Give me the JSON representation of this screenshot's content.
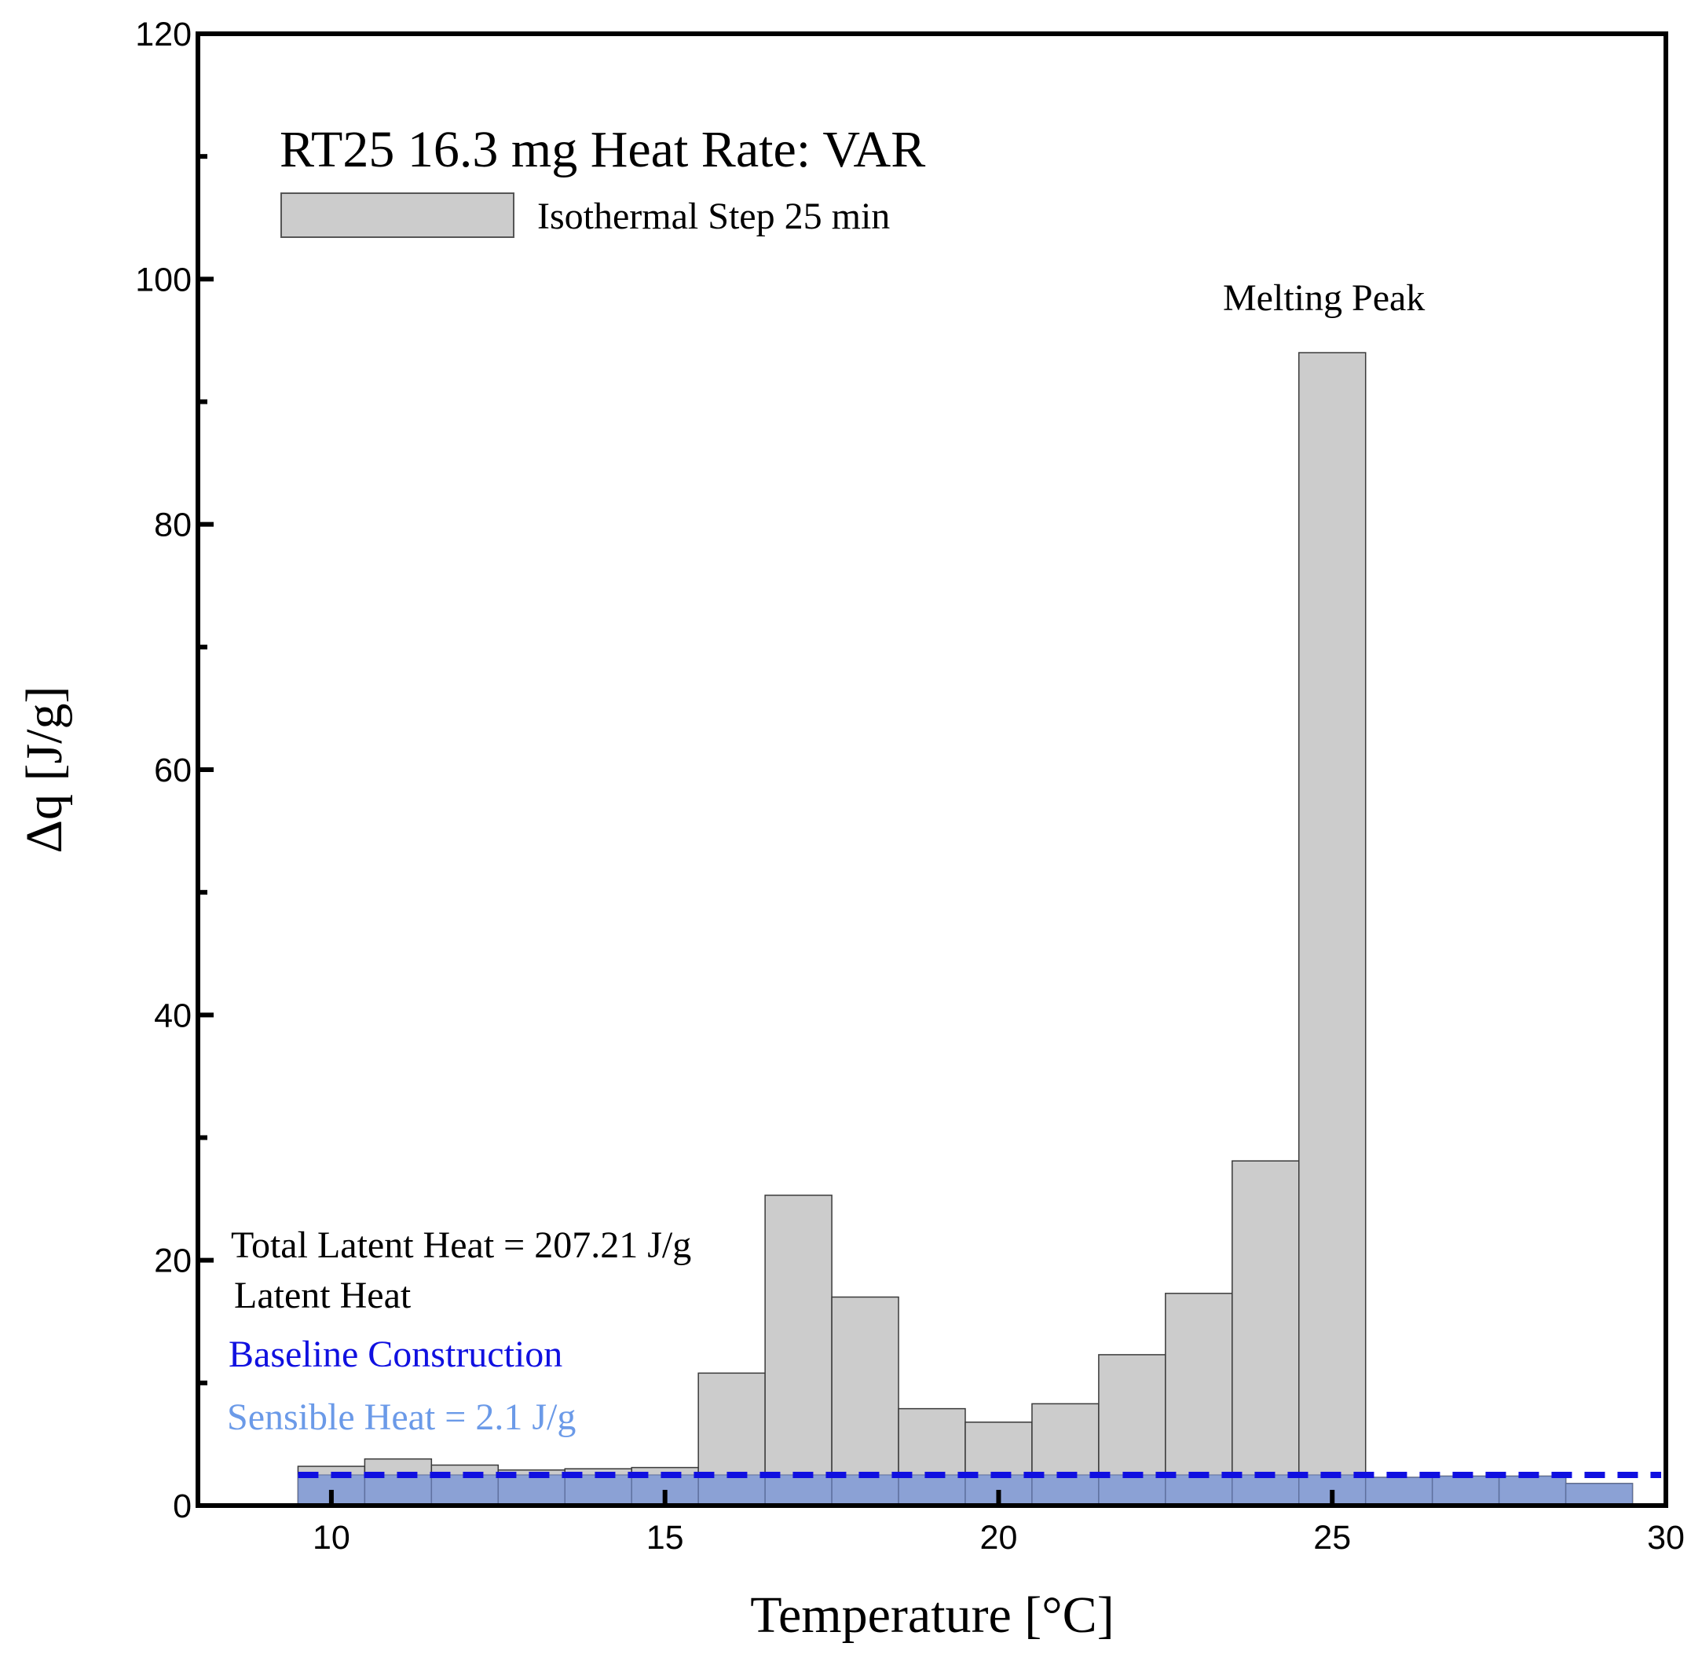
{
  "chart_data": {
    "type": "bar",
    "title": "RT25 16.3 mg Heat Rate: VAR",
    "xlabel": "Temperature [°C]",
    "ylabel": "Δq [J/g]",
    "xlim": [
      8,
      30
    ],
    "ylim": [
      0,
      120
    ],
    "xticks": [
      10,
      15,
      20,
      25,
      30
    ],
    "yticks": [
      0,
      20,
      40,
      60,
      80,
      100,
      120
    ],
    "bin_width": 1,
    "legend": {
      "label": "Isothermal Step 25 min",
      "position": "top-left"
    },
    "series": [
      {
        "name": "Isothermal Step 25 min",
        "color": "#cccccc",
        "x": [
          10,
          11,
          12,
          13,
          14,
          15,
          16,
          17,
          18,
          19,
          20,
          21,
          22,
          23,
          24,
          25,
          26,
          27,
          28,
          29
        ],
        "values": [
          3.2,
          3.8,
          3.3,
          2.9,
          3.0,
          3.1,
          10.8,
          25.3,
          17.0,
          7.9,
          6.8,
          8.3,
          12.3,
          17.3,
          28.1,
          94.0,
          2.3,
          2.4,
          2.4,
          1.8
        ]
      },
      {
        "name": "Sensible Heat = 2.1 J/g",
        "color": "#6f8fd8",
        "x": [
          10,
          11,
          12,
          13,
          14,
          15,
          16,
          17,
          18,
          19,
          20,
          21,
          22,
          23,
          24,
          25,
          26,
          27,
          28,
          29
        ],
        "values": [
          2.5,
          2.5,
          2.5,
          2.5,
          2.5,
          2.5,
          2.5,
          2.5,
          2.5,
          2.5,
          2.5,
          2.5,
          2.5,
          2.5,
          2.5,
          2.5,
          2.3,
          2.4,
          2.4,
          1.8
        ]
      }
    ],
    "baseline": {
      "name": "Baseline Construction",
      "value": 2.5,
      "x_range": [
        9.5,
        30
      ],
      "style": "dashed",
      "color": "#1010e0"
    },
    "annotations": {
      "melting_peak": "Melting Peak",
      "total_latent": "Total Latent Heat = 207.21 J/g",
      "latent_heat": "Latent Heat",
      "baseline_label": "Baseline Construction",
      "sensible_label": "Sensible Heat = 2.1 J/g"
    }
  }
}
